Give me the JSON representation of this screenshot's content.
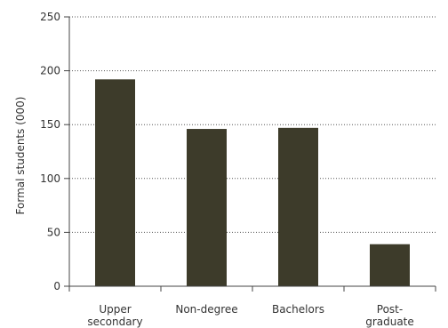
{
  "chart_data": {
    "type": "bar",
    "title": "",
    "xlabel": "",
    "ylabel": "Formal students (000)",
    "categories": [
      [
        "Upper",
        "secondary"
      ],
      [
        "Non-degree"
      ],
      [
        "Bachelors"
      ],
      [
        "Post-",
        "graduate"
      ]
    ],
    "values": [
      192,
      146,
      147,
      39
    ],
    "ylim": [
      0,
      250
    ],
    "yticks": [
      "0",
      "50",
      "100",
      "150",
      "200",
      "250"
    ],
    "grid": "dotted horizontal",
    "bar_color": "#3d3b2a"
  }
}
